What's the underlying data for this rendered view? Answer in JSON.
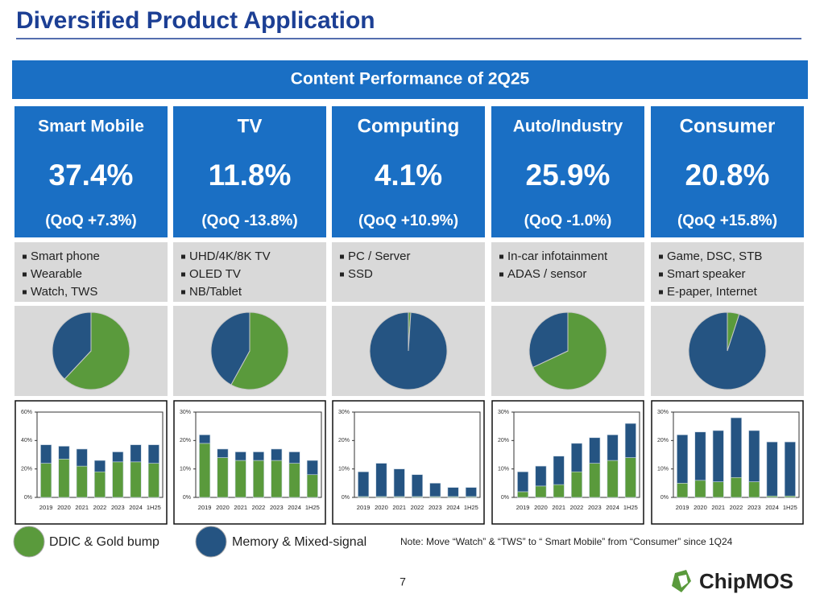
{
  "header": {
    "title": "Diversified Product Application",
    "banner": "Content Performance of 2Q25"
  },
  "segments": [
    {
      "name": "Smart Mobile",
      "share": "37.4%",
      "qoq": "(QoQ +7.3%)",
      "bullets": [
        "Smart phone",
        "Wearable",
        "Watch, TWS"
      ]
    },
    {
      "name": "TV",
      "share": "11.8%",
      "qoq": "(QoQ -13.8%)",
      "bullets": [
        "UHD/4K/8K TV",
        "OLED TV",
        "NB/Tablet"
      ]
    },
    {
      "name": "Computing",
      "share": "4.1%",
      "qoq": "(QoQ +10.9%)",
      "bullets": [
        "PC / Server",
        "SSD"
      ]
    },
    {
      "name": "Auto/Industry",
      "share": "25.9%",
      "qoq": "(QoQ -1.0%)",
      "bullets": [
        "In-car infotainment",
        "ADAS / sensor"
      ]
    },
    {
      "name": "Consumer",
      "share": "20.8%",
      "qoq": "(QoQ +15.8%)",
      "bullets": [
        "Game, DSC, STB",
        "Smart speaker",
        "E-paper, Internet"
      ]
    }
  ],
  "legend": {
    "items": [
      {
        "label": "DDIC & Gold bump",
        "color": "#5a9a3c"
      },
      {
        "label": "Memory & Mixed-signal",
        "color": "#255482"
      }
    ],
    "note": "Note: Move “Watch” & “TWS” to “ Smart Mobile” from “Consumer” since 1Q24"
  },
  "footer": {
    "page": "7",
    "logo": "ChipMOS"
  },
  "chart_data": [
    {
      "type": "pie",
      "values": [
        62,
        38
      ],
      "colors": [
        "#5a9a3c",
        "#255482"
      ]
    },
    {
      "type": "pie",
      "values": [
        58,
        42
      ],
      "colors": [
        "#5a9a3c",
        "#255482"
      ]
    },
    {
      "type": "pie",
      "values": [
        1,
        99
      ],
      "colors": [
        "#5a9a3c",
        "#255482"
      ]
    },
    {
      "type": "pie",
      "values": [
        68,
        32
      ],
      "colors": [
        "#5a9a3c",
        "#255482"
      ]
    },
    {
      "type": "pie",
      "values": [
        5,
        95
      ],
      "colors": [
        "#5a9a3c",
        "#255482"
      ]
    },
    {
      "type": "bar",
      "stacked": true,
      "categories": [
        "2019",
        "2020",
        "2021",
        "2022",
        "2023",
        "2024",
        "1H25"
      ],
      "series": [
        {
          "color": "#5a9a3c",
          "values": [
            24,
            27,
            22,
            18,
            25,
            25,
            24
          ]
        },
        {
          "color": "#255482",
          "values": [
            13,
            9,
            12,
            8,
            7,
            12,
            13
          ]
        }
      ],
      "ylim": [
        0,
        60
      ],
      "yticks": [
        {
          "value": 0,
          "label": "0%"
        },
        {
          "value": 20,
          "label": "20%"
        },
        {
          "value": 40,
          "label": "40%"
        },
        {
          "value": 60,
          "label": "60%"
        }
      ]
    },
    {
      "type": "bar",
      "stacked": true,
      "categories": [
        "2019",
        "2020",
        "2021",
        "2022",
        "2023",
        "2024",
        "1H25"
      ],
      "series": [
        {
          "color": "#5a9a3c",
          "values": [
            19,
            14,
            13,
            13,
            13,
            12,
            8
          ]
        },
        {
          "color": "#255482",
          "values": [
            3,
            3,
            3,
            3,
            4,
            4,
            5
          ]
        }
      ],
      "ylim": [
        0,
        30
      ],
      "yticks": [
        {
          "value": 0,
          "label": "0%"
        },
        {
          "value": 10,
          "label": "10%"
        },
        {
          "value": 20,
          "label": "20%"
        },
        {
          "value": 30,
          "label": "30%"
        }
      ]
    },
    {
      "type": "bar",
      "stacked": true,
      "categories": [
        "2019",
        "2020",
        "2021",
        "2022",
        "2023",
        "2024",
        "1H25"
      ],
      "series": [
        {
          "color": "#5a9a3c",
          "values": [
            0.3,
            0.3,
            0.3,
            0.3,
            0.3,
            0.3,
            0.3
          ]
        },
        {
          "color": "#255482",
          "values": [
            8.7,
            11.7,
            9.7,
            7.7,
            4.7,
            3.2,
            3.2
          ]
        }
      ],
      "ylim": [
        0,
        30
      ],
      "yticks": [
        {
          "value": 0,
          "label": "0%"
        },
        {
          "value": 10,
          "label": "10%"
        },
        {
          "value": 20,
          "label": "20%"
        },
        {
          "value": 30,
          "label": "30%"
        }
      ]
    },
    {
      "type": "bar",
      "stacked": true,
      "categories": [
        "2019",
        "2020",
        "2021",
        "2022",
        "2023",
        "2024",
        "1H25"
      ],
      "series": [
        {
          "color": "#5a9a3c",
          "values": [
            2,
            4,
            4.5,
            9,
            12,
            13,
            14
          ]
        },
        {
          "color": "#255482",
          "values": [
            7,
            7,
            10,
            10,
            9,
            9,
            12
          ]
        }
      ],
      "ylim": [
        0,
        30
      ],
      "yticks": [
        {
          "value": 0,
          "label": "0%"
        },
        {
          "value": 10,
          "label": "10%"
        },
        {
          "value": 20,
          "label": "20%"
        },
        {
          "value": 30,
          "label": "30%"
        }
      ]
    },
    {
      "type": "bar",
      "stacked": true,
      "categories": [
        "2019",
        "2020",
        "2021",
        "2022",
        "2023",
        "2024",
        "1H25"
      ],
      "series": [
        {
          "color": "#5a9a3c",
          "values": [
            5,
            6,
            5.5,
            7,
            5.5,
            0.5,
            0.5
          ]
        },
        {
          "color": "#255482",
          "values": [
            17,
            17,
            18,
            21,
            18,
            19,
            19
          ]
        }
      ],
      "ylim": [
        0,
        30
      ],
      "yticks": [
        {
          "value": 0,
          "label": "0%"
        },
        {
          "value": 10,
          "label": "10%"
        },
        {
          "value": 20,
          "label": "20%"
        },
        {
          "value": 30,
          "label": "30%"
        }
      ]
    }
  ]
}
